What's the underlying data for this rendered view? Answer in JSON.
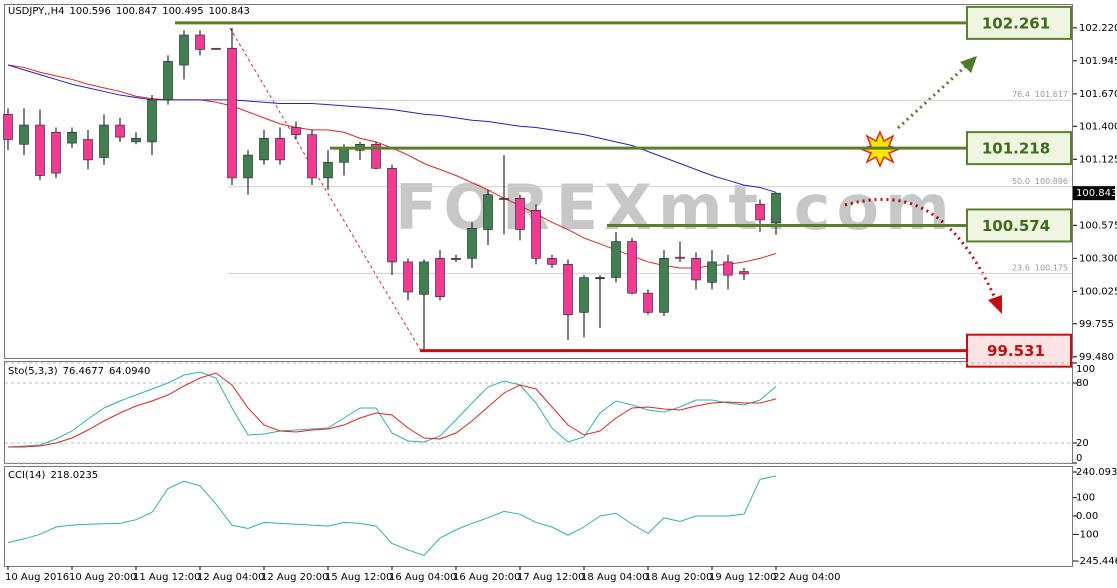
{
  "chart_data": {
    "type": "candlestick",
    "symbol": "USDJPY,,H4",
    "watermark": "FOREXmt.com",
    "categories": [
      "10 Aug 2016",
      null,
      null,
      null,
      "10 Aug 20:00",
      null,
      null,
      null,
      "11 Aug 12:00",
      null,
      null,
      null,
      "12 Aug 04:00",
      null,
      null,
      null,
      "12 Aug 20:00",
      null,
      null,
      null,
      "15 Aug 12:00",
      null,
      null,
      null,
      "16 Aug 04:00",
      null,
      null,
      null,
      "16 Aug 20:00",
      null,
      null,
      null,
      "17 Aug 12:00",
      null,
      null,
      null,
      "18 Aug 04:00",
      null,
      null,
      null,
      "18 Aug 20:00",
      null,
      null,
      null,
      "19 Aug 12:00",
      null,
      null,
      null,
      "22 Aug 04:00"
    ],
    "ohlc": [
      [
        101.5,
        101.55,
        101.2,
        101.29
      ],
      [
        101.25,
        101.55,
        101.16,
        101.41
      ],
      [
        101.41,
        101.54,
        100.95,
        100.99
      ],
      [
        101.35,
        101.39,
        100.97,
        101.01
      ],
      [
        101.26,
        101.39,
        101.22,
        101.35
      ],
      [
        101.29,
        101.37,
        101.04,
        101.12
      ],
      [
        101.14,
        101.5,
        101.08,
        101.41
      ],
      [
        101.41,
        101.47,
        101.27,
        101.31
      ],
      [
        101.27,
        101.35,
        101.25,
        101.3
      ],
      [
        101.27,
        101.66,
        101.16,
        101.62
      ],
      [
        101.62,
        101.99,
        101.58,
        101.94
      ],
      [
        101.91,
        102.2,
        101.79,
        102.16
      ],
      [
        102.16,
        102.2,
        101.99,
        102.04
      ],
      [
        102.05,
        102.05,
        102.04,
        102.04
      ],
      [
        102.05,
        102.22,
        100.91,
        100.97
      ],
      [
        100.97,
        101.2,
        100.83,
        101.16
      ],
      [
        101.12,
        101.37,
        101.08,
        101.3
      ],
      [
        101.3,
        101.39,
        101.08,
        101.12
      ],
      [
        101.39,
        101.44,
        101.29,
        101.33
      ],
      [
        101.33,
        101.37,
        100.91,
        100.97
      ],
      [
        100.97,
        101.2,
        100.87,
        101.1
      ],
      [
        101.1,
        101.25,
        100.99,
        101.22
      ],
      [
        101.2,
        101.27,
        101.12,
        101.25
      ],
      [
        101.25,
        101.27,
        101.04,
        101.05
      ],
      [
        101.05,
        101.08,
        100.16,
        100.27
      ],
      [
        100.27,
        100.3,
        99.95,
        100.02
      ],
      [
        100.0,
        100.29,
        99.53,
        100.27
      ],
      [
        100.3,
        100.37,
        99.95,
        99.98
      ],
      [
        100.3,
        100.33,
        100.27,
        100.29
      ],
      [
        100.3,
        100.6,
        100.22,
        100.55
      ],
      [
        100.54,
        100.87,
        100.41,
        100.83
      ],
      [
        100.8,
        101.16,
        100.5,
        100.79
      ],
      [
        100.8,
        100.83,
        100.45,
        100.54
      ],
      [
        100.7,
        100.75,
        100.25,
        100.3
      ],
      [
        100.3,
        100.33,
        100.22,
        100.25
      ],
      [
        100.25,
        100.29,
        99.62,
        99.83
      ],
      [
        99.85,
        100.16,
        99.64,
        100.14
      ],
      [
        100.14,
        100.16,
        99.72,
        100.14
      ],
      [
        100.14,
        100.52,
        100.1,
        100.44
      ],
      [
        100.44,
        100.47,
        100.0,
        100.01
      ],
      [
        100.01,
        100.04,
        99.83,
        99.85
      ],
      [
        99.85,
        100.37,
        99.82,
        100.3
      ],
      [
        100.31,
        100.44,
        100.27,
        100.3
      ],
      [
        100.3,
        100.35,
        100.04,
        100.12
      ],
      [
        100.1,
        100.37,
        100.04,
        100.27
      ],
      [
        100.27,
        100.33,
        100.04,
        100.16
      ],
      [
        100.19,
        100.22,
        100.12,
        100.17
      ],
      [
        100.75,
        100.79,
        100.52,
        100.62
      ],
      [
        100.596,
        100.847,
        100.495,
        100.843
      ]
    ],
    "colors": {
      "up": "#3f7f50",
      "down": "#f23a95",
      "doji": "#000000"
    },
    "ylim": [
      99.47,
      102.41
    ],
    "yticks": [
      {
        "value": 102.22,
        "label": "102.220"
      },
      101.945,
      {
        "value": 101.67,
        "label": "101.670"
      },
      {
        "value": 101.4,
        "label": "101.400"
      },
      101.125,
      100.575,
      {
        "value": 100.3,
        "label": "100.300"
      },
      100.025,
      99.755,
      {
        "value": 99.48,
        "label": "99.480"
      }
    ],
    "series": [
      {
        "color": "#e3241d",
        "values": [
          101.91,
          101.89,
          101.85,
          101.82,
          101.79,
          101.75,
          101.72,
          101.69,
          101.65,
          101.63,
          101.62,
          101.62,
          101.62,
          101.6,
          101.57,
          101.52,
          101.47,
          101.42,
          101.39,
          101.37,
          101.37,
          101.35,
          101.3,
          101.27,
          101.22,
          101.16,
          101.09,
          101.04,
          100.99,
          100.93,
          100.87,
          100.8,
          100.74,
          100.67,
          100.6,
          100.54,
          100.47,
          100.42,
          100.37,
          100.32,
          100.27,
          100.24,
          100.22,
          100.22,
          100.24,
          100.25,
          100.27,
          100.3,
          100.34
        ]
      },
      {
        "color": "#2222c4",
        "values": [
          101.91,
          101.87,
          101.83,
          101.79,
          101.75,
          101.72,
          101.69,
          101.66,
          101.64,
          101.62,
          101.62,
          101.62,
          101.62,
          101.62,
          101.62,
          101.61,
          101.6,
          101.59,
          101.59,
          101.59,
          101.58,
          101.57,
          101.56,
          101.55,
          101.54,
          101.52,
          101.5,
          101.49,
          101.47,
          101.45,
          101.44,
          101.42,
          101.4,
          101.39,
          101.37,
          101.35,
          101.33,
          101.3,
          101.27,
          101.24,
          101.19,
          101.14,
          101.09,
          101.04,
          100.99,
          100.95,
          100.91,
          100.89,
          100.85
        ]
      }
    ],
    "fib": [
      {
        "level": "76.4",
        "price": 101.617
      },
      {
        "level": "50.0",
        "price": 100.896
      },
      {
        "level": "23.6",
        "price": 100.175
      }
    ],
    "levels": [
      {
        "price": 102.261,
        "color": "#5a7f2c",
        "box": "#eef5e0",
        "text": "#3f6a1d"
      },
      {
        "price": 101.218,
        "color": "#5a7f2c",
        "box": "#eef5e0",
        "text": "#3f6a1d"
      },
      {
        "price": 100.574,
        "color": "#5a7f2c",
        "box": "#eef5e0",
        "text": "#3f6a1d"
      },
      {
        "price": 99.531,
        "color": "#c40f0f",
        "box": "#fde3e3",
        "text": "#c40f0f"
      }
    ],
    "indicators": [
      {
        "type": "line",
        "title": "Sto(5,3,3)",
        "ylim": [
          0,
          100
        ],
        "yticks": [
          100,
          80,
          20,
          0
        ],
        "grid": true,
        "series": [
          {
            "color": "#2bb3b0",
            "values": [
              16,
              17,
              18,
              24,
              32,
              44,
              55,
              62,
              68,
              74,
              80,
              88,
              91,
              85,
              55,
              28,
              29,
              32,
              33,
              34,
              35,
              45,
              55,
              55,
              30,
              22,
              21,
              27,
              43,
              60,
              76,
              82,
              78,
              60,
              35,
              21,
              26,
              50,
              62,
              58,
              53,
              51,
              56,
              63,
              63,
              60,
              58,
              63,
              76.4677
            ]
          },
          {
            "color": "#e3241d",
            "values": [
              16,
              16,
              17,
              20,
              25,
              33,
              42,
              50,
              57,
              62,
              68,
              77,
              85,
              90,
              78,
              55,
              38,
              32,
              31,
              33,
              34,
              38,
              45,
              50,
              48,
              35,
              25,
              24,
              30,
              42,
              56,
              70,
              78,
              74,
              56,
              38,
              28,
              32,
              45,
              55,
              56,
              54,
              53,
              57,
              60,
              61,
              60,
              60,
              64.094
            ],
            "value_labels": [
              null,
              null,
              null,
              null,
              null,
              null,
              null,
              null,
              null,
              null,
              null,
              null,
              null,
              null,
              null,
              null,
              null,
              null,
              null,
              null,
              null,
              null,
              null,
              null,
              null,
              null,
              null,
              null,
              null,
              null,
              null,
              null,
              null,
              null,
              null,
              null,
              null,
              null,
              null,
              null,
              null,
              null,
              null,
              null,
              null,
              null,
              null,
              null,
              "64.0940"
            ]
          }
        ]
      },
      {
        "type": "line",
        "title": "CCI(14)",
        "ylim": [
          -245.4462,
          240.0935
        ],
        "yticks": [
          240.0935,
          100,
          {
            "value": 0,
            "label": "0.00"
          },
          -100,
          -245.4462
        ],
        "grid": false,
        "series": [
          {
            "color": "#2bb3b0",
            "values": [
              -145,
              -125,
              -100,
              -60,
              -50,
              -45,
              -42,
              -40,
              -20,
              20,
              150,
              190,
              165,
              65,
              -50,
              -68,
              -35,
              -40,
              -45,
              -50,
              -55,
              -35,
              -40,
              -55,
              -150,
              -185,
              -215,
              -120,
              -75,
              -40,
              -10,
              25,
              10,
              -35,
              -60,
              -105,
              -60,
              0,
              15,
              -45,
              -95,
              -10,
              -30,
              0,
              0,
              0,
              10,
              200,
              218.0235
            ]
          }
        ]
      }
    ]
  }
}
